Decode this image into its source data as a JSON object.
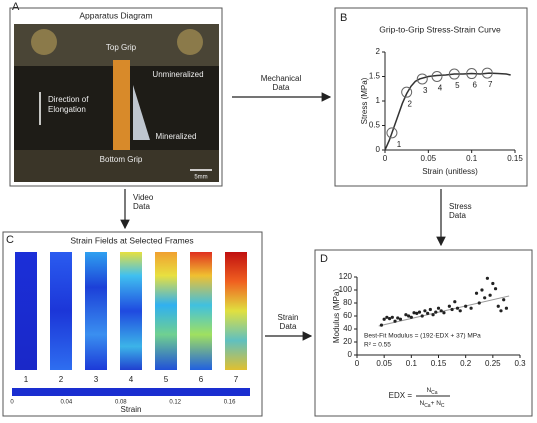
{
  "chart_data": [
    {
      "type": "line",
      "title": "Grip-to-Grip Stress-Strain Curve",
      "x_label": "Strain (unitless)",
      "y_label": "Stress (MPa)",
      "xlim": [
        0,
        0.15
      ],
      "xticks": [
        0,
        0.05,
        0.1,
        0.15
      ],
      "ylim": [
        0,
        2
      ],
      "yticks": [
        0,
        0.5,
        1,
        1.5,
        2
      ],
      "color": "#333333",
      "x": [
        0,
        0.005,
        0.01,
        0.015,
        0.02,
        0.025,
        0.03,
        0.035,
        0.04,
        0.05,
        0.06,
        0.07,
        0.08,
        0.09,
        0.1,
        0.11,
        0.12,
        0.13,
        0.14,
        0.145
      ],
      "values": [
        0,
        0.2,
        0.45,
        0.7,
        0.95,
        1.15,
        1.3,
        1.4,
        1.45,
        1.5,
        1.52,
        1.53,
        1.55,
        1.55,
        1.56,
        1.55,
        1.57,
        1.56,
        1.55,
        1.53
      ],
      "markers": {
        "x": [
          0.008,
          0.025,
          0.043,
          0.06,
          0.08,
          0.1,
          0.118
        ],
        "values": [
          0.35,
          1.18,
          1.45,
          1.5,
          1.55,
          1.56,
          1.57
        ],
        "labels": [
          "1",
          "2",
          "3",
          "4",
          "5",
          "6",
          "7"
        ]
      }
    },
    {
      "type": "scatter",
      "y_label": "Modulus (MPa)",
      "x_label": "EDX =",
      "x_label_fraction": {
        "numerator": [
          "N",
          "Ca"
        ],
        "denominator": [
          "N",
          "Ca",
          "+ N",
          "C"
        ]
      },
      "xlim": [
        0,
        0.3
      ],
      "xticks": [
        0,
        0.05,
        0.1,
        0.15,
        0.2,
        0.25,
        0.3
      ],
      "ylim": [
        0,
        120
      ],
      "yticks": [
        0,
        20,
        40,
        60,
        80,
        100,
        120
      ],
      "color": "#222222",
      "x": [
        0.045,
        0.05,
        0.055,
        0.06,
        0.065,
        0.07,
        0.075,
        0.08,
        0.09,
        0.095,
        0.1,
        0.105,
        0.11,
        0.115,
        0.12,
        0.125,
        0.13,
        0.135,
        0.14,
        0.145,
        0.15,
        0.155,
        0.16,
        0.17,
        0.175,
        0.18,
        0.185,
        0.19,
        0.2,
        0.21,
        0.22,
        0.225,
        0.23,
        0.235,
        0.24,
        0.245,
        0.25,
        0.255,
        0.26,
        0.265,
        0.27,
        0.275
      ],
      "values": [
        46,
        55,
        58,
        56,
        58,
        52,
        57,
        55,
        62,
        60,
        58,
        65,
        64,
        66,
        60,
        68,
        64,
        70,
        62,
        66,
        72,
        68,
        65,
        75,
        70,
        82,
        72,
        68,
        75,
        72,
        95,
        80,
        100,
        88,
        118,
        92,
        110,
        102,
        75,
        68,
        85,
        72
      ],
      "fit": {
        "x": [
          0.04,
          0.28
        ],
        "values": [
          44.68,
          90.76
        ]
      },
      "annotations": [
        "Best-Fit Modulus = (192·EDX + 37) MPa",
        "R² = 0.55"
      ]
    }
  ],
  "panels": {
    "A": {
      "letter": "A",
      "title": "Apparatus Diagram",
      "top_grip": "Top Grip",
      "unmineralized": "Unmineralized",
      "direction": [
        "Direction of",
        "Elongation"
      ],
      "mineralized": "Mineralized",
      "bottom_grip": "Bottom Grip",
      "scale": "5mm"
    },
    "B": {
      "letter": "B"
    },
    "C": {
      "letter": "C",
      "title": "Strain Fields at Selected Frames",
      "frames": [
        "1",
        "2",
        "3",
        "4",
        "5",
        "6",
        "7"
      ],
      "colorbar": {
        "lim": [
          0,
          0.175
        ],
        "ticks": [
          0,
          0.04,
          0.08,
          0.12,
          0.16
        ],
        "label": "Strain"
      }
    },
    "D": {
      "letter": "D"
    }
  },
  "arrows": [
    [
      "Mechanical",
      "Data"
    ],
    [
      "Video",
      "Data"
    ],
    [
      "Stress",
      "Data"
    ],
    [
      "Strain",
      "Data"
    ]
  ]
}
